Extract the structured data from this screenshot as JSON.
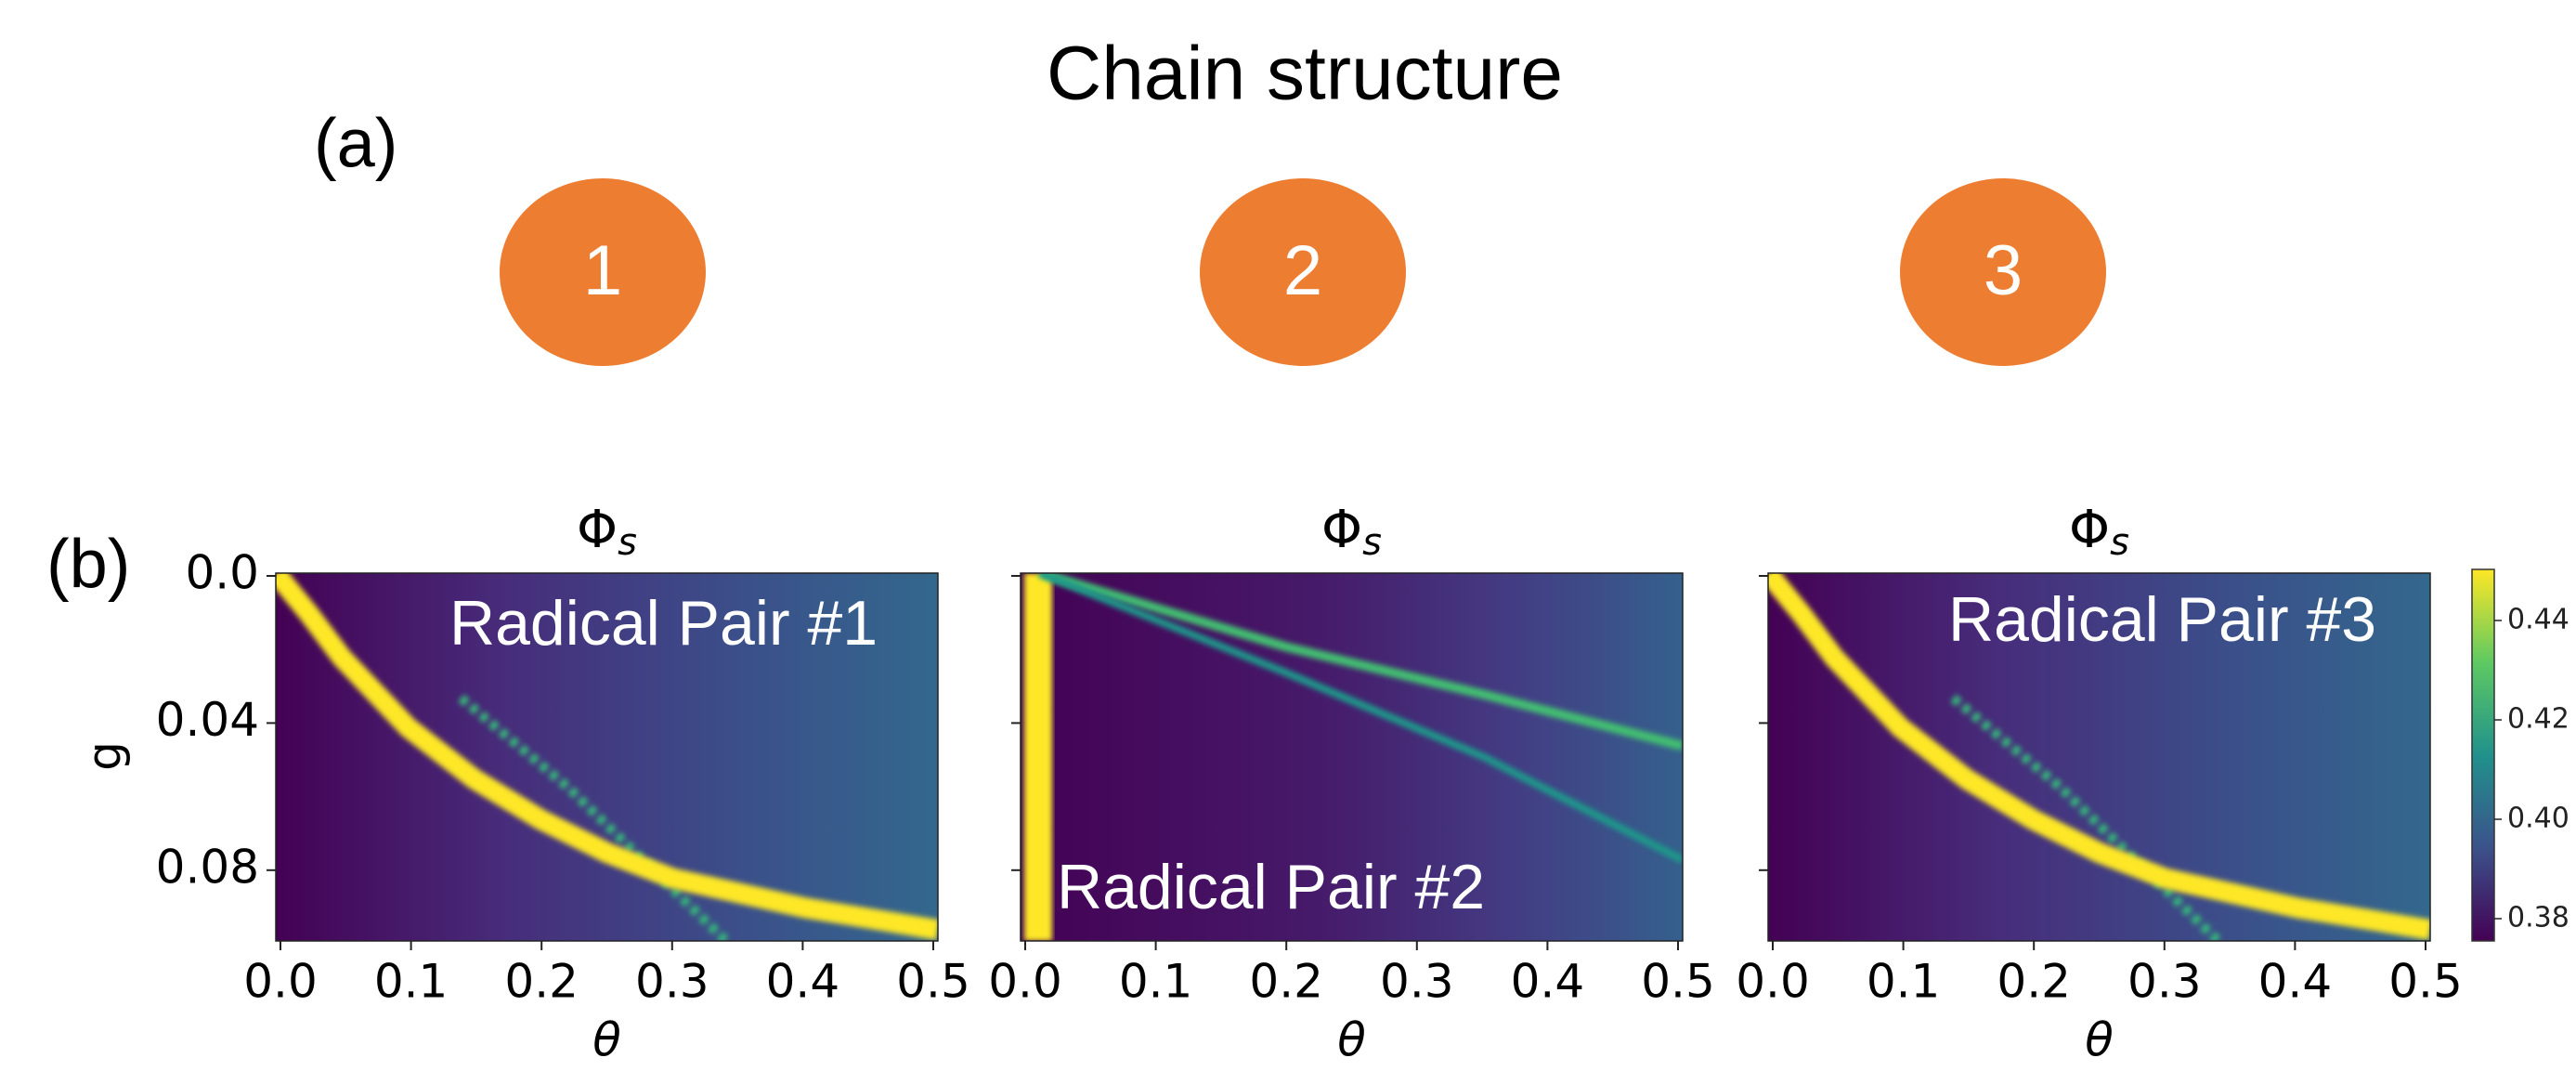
{
  "title": "Chain structure",
  "panel_a": {
    "label": "(a)",
    "nodes": [
      "1",
      "2",
      "3"
    ]
  },
  "panel_b": {
    "label": "(b)",
    "y_label": "g",
    "y_ticks": [
      "0.0",
      "0.04",
      "0.08"
    ],
    "x_ticks": [
      "0.0",
      "0.1",
      "0.2",
      "0.3",
      "0.4",
      "0.5"
    ],
    "colorbar_ticks": [
      "0.44",
      "0.42",
      "0.40",
      "0.38"
    ],
    "plots": [
      {
        "symbol": "Φ",
        "subscript": "s",
        "x_label": "θ",
        "annotation": "Radical Pair #1"
      },
      {
        "symbol": "Φ",
        "subscript": "s",
        "x_label": "θ",
        "annotation": "Radical Pair #2"
      },
      {
        "symbol": "Φ",
        "subscript": "s",
        "x_label": "θ",
        "annotation": "Radical Pair #3"
      }
    ]
  }
}
